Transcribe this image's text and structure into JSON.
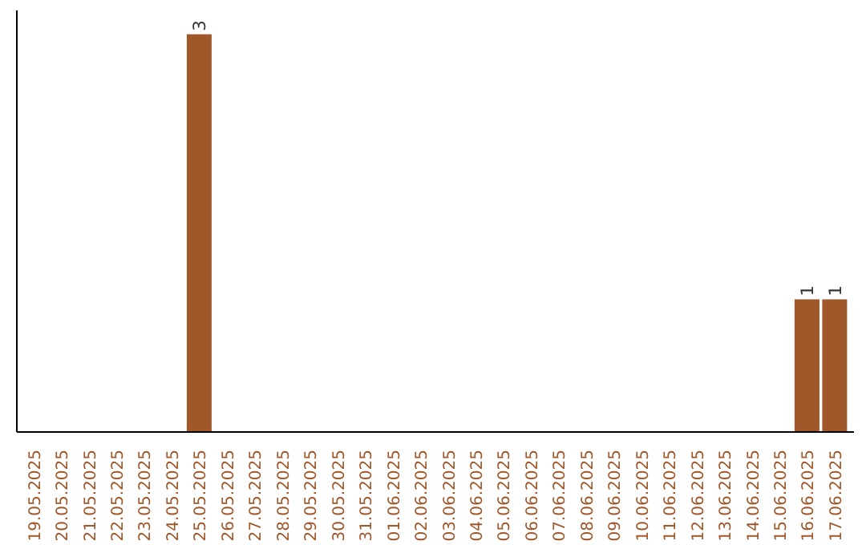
{
  "chart_data": {
    "type": "bar",
    "categories": [
      "19.05.2025",
      "20.05.2025",
      "21.05.2025",
      "22.05.2025",
      "23.05.2025",
      "24.05.2025",
      "25.05.2025",
      "26.05.2025",
      "27.05.2025",
      "28.05.2025",
      "29.05.2025",
      "30.05.2025",
      "31.05.2025",
      "01.06.2025",
      "02.06.2025",
      "03.06.2025",
      "04.06.2025",
      "05.06.2025",
      "06.06.2025",
      "07.06.2025",
      "08.06.2025",
      "09.06.2025",
      "10.06.2025",
      "11.06.2025",
      "12.06.2025",
      "13.06.2025",
      "14.06.2025",
      "15.06.2025",
      "16.06.2025",
      "17.06.2025"
    ],
    "values": [
      0,
      0,
      0,
      0,
      0,
      0,
      3,
      0,
      0,
      0,
      0,
      0,
      0,
      0,
      0,
      0,
      0,
      0,
      0,
      0,
      0,
      0,
      0,
      0,
      0,
      0,
      0,
      0,
      1,
      1
    ],
    "value_labels": [
      null,
      null,
      null,
      null,
      null,
      null,
      "3",
      null,
      null,
      null,
      null,
      null,
      null,
      null,
      null,
      null,
      null,
      null,
      null,
      null,
      null,
      null,
      null,
      null,
      null,
      null,
      null,
      null,
      "1",
      "1"
    ],
    "color": "#a0572a"
  }
}
